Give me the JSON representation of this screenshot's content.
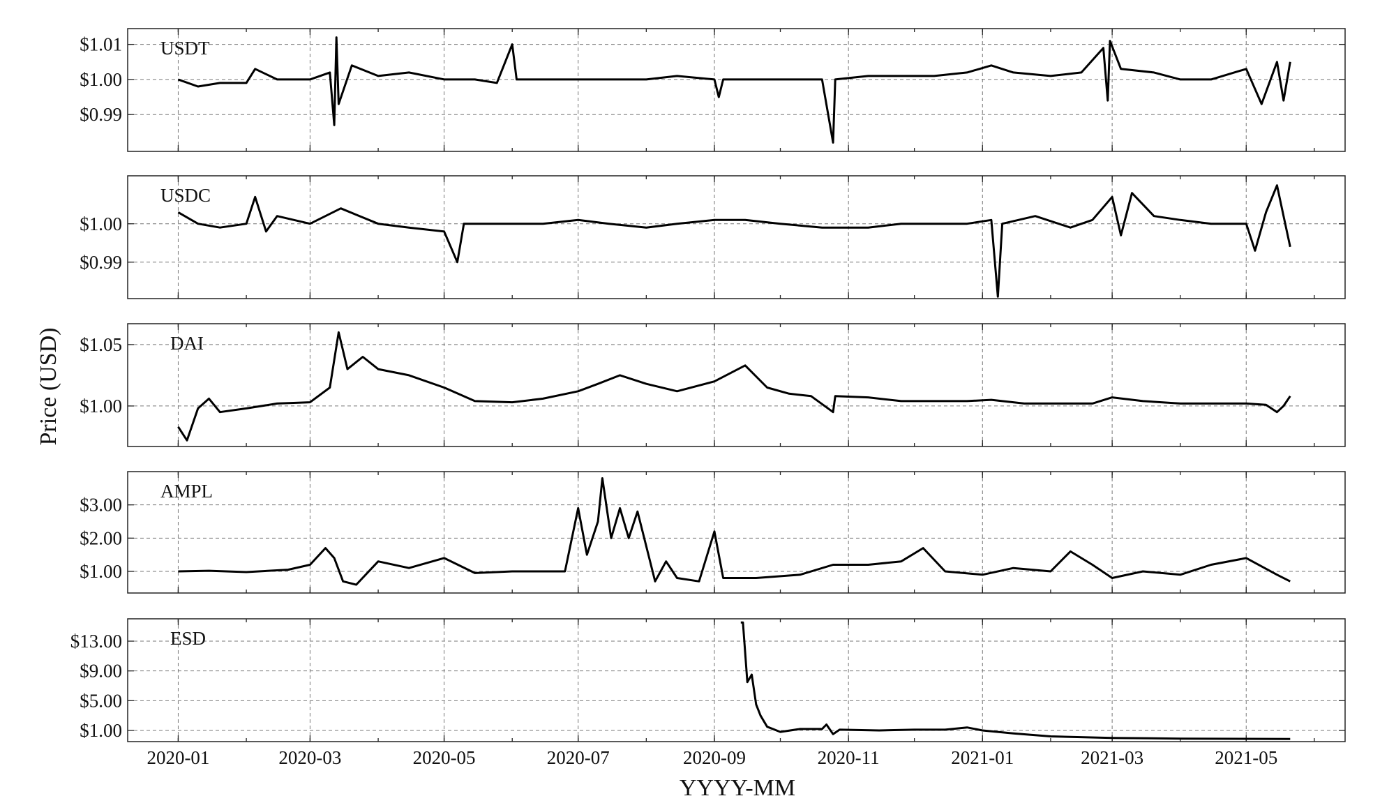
{
  "chart_data": {
    "type": "line",
    "layout": "stacked-panels",
    "xlabel": "YYYY-MM",
    "ylabel": "Price (USD)",
    "x_start": "2020-01-01",
    "x_end": "2021-05-21",
    "x_ticks": [
      "2020-01",
      "2020-03",
      "2020-05",
      "2020-07",
      "2020-09",
      "2020-11",
      "2021-01",
      "2021-03",
      "2021-05"
    ],
    "grid": true,
    "panels": [
      {
        "name": "USDT",
        "ylim": [
          0.9795,
          1.0145
        ],
        "yticks": [
          0.99,
          1.0,
          1.01
        ],
        "ytick_labels": [
          "$0.99",
          "$1.00",
          "$1.01"
        ],
        "series": [
          [
            "2020-01-01",
            1.0
          ],
          [
            "2020-01-10",
            0.998
          ],
          [
            "2020-01-20",
            0.999
          ],
          [
            "2020-02-01",
            0.999
          ],
          [
            "2020-02-05",
            1.003
          ],
          [
            "2020-02-15",
            1.0
          ],
          [
            "2020-03-01",
            1.0
          ],
          [
            "2020-03-10",
            1.002
          ],
          [
            "2020-03-12",
            0.987
          ],
          [
            "2020-03-13",
            1.012
          ],
          [
            "2020-03-14",
            0.993
          ],
          [
            "2020-03-20",
            1.004
          ],
          [
            "2020-04-01",
            1.001
          ],
          [
            "2020-04-15",
            1.002
          ],
          [
            "2020-05-01",
            1.0
          ],
          [
            "2020-05-15",
            1.0
          ],
          [
            "2020-05-25",
            0.999
          ],
          [
            "2020-06-01",
            1.01
          ],
          [
            "2020-06-03",
            1.0
          ],
          [
            "2020-06-15",
            1.0
          ],
          [
            "2020-07-01",
            1.0
          ],
          [
            "2020-07-15",
            1.0
          ],
          [
            "2020-08-01",
            1.0
          ],
          [
            "2020-08-15",
            1.001
          ],
          [
            "2020-09-01",
            1.0
          ],
          [
            "2020-09-03",
            0.995
          ],
          [
            "2020-09-05",
            1.0
          ],
          [
            "2020-09-20",
            1.0
          ],
          [
            "2020-10-01",
            1.0
          ],
          [
            "2020-10-20",
            1.0
          ],
          [
            "2020-10-25",
            0.982
          ],
          [
            "2020-10-26",
            1.0
          ],
          [
            "2020-11-10",
            1.001
          ],
          [
            "2020-11-25",
            1.001
          ],
          [
            "2020-12-10",
            1.001
          ],
          [
            "2020-12-25",
            1.002
          ],
          [
            "2021-01-05",
            1.004
          ],
          [
            "2021-01-15",
            1.002
          ],
          [
            "2021-02-01",
            1.001
          ],
          [
            "2021-02-15",
            1.002
          ],
          [
            "2021-02-25",
            1.009
          ],
          [
            "2021-02-27",
            0.994
          ],
          [
            "2021-02-28",
            1.011
          ],
          [
            "2021-03-05",
            1.003
          ],
          [
            "2021-03-20",
            1.002
          ],
          [
            "2021-04-01",
            1.0
          ],
          [
            "2021-04-15",
            1.0
          ],
          [
            "2021-05-01",
            1.003
          ],
          [
            "2021-05-08",
            0.993
          ],
          [
            "2021-05-15",
            1.005
          ],
          [
            "2021-05-18",
            0.994
          ],
          [
            "2021-05-21",
            1.005
          ]
        ]
      },
      {
        "name": "USDC",
        "ylim": [
          0.9805,
          1.0125
        ],
        "yticks": [
          0.99,
          1.0
        ],
        "ytick_labels": [
          "$0.99",
          "$1.00"
        ],
        "series": [
          [
            "2020-01-01",
            1.003
          ],
          [
            "2020-01-10",
            1.0
          ],
          [
            "2020-01-20",
            0.999
          ],
          [
            "2020-02-01",
            1.0
          ],
          [
            "2020-02-05",
            1.007
          ],
          [
            "2020-02-10",
            0.998
          ],
          [
            "2020-02-15",
            1.002
          ],
          [
            "2020-03-01",
            1.0
          ],
          [
            "2020-03-15",
            1.004
          ],
          [
            "2020-04-01",
            1.0
          ],
          [
            "2020-04-15",
            0.999
          ],
          [
            "2020-05-01",
            0.998
          ],
          [
            "2020-05-07",
            0.99
          ],
          [
            "2020-05-10",
            1.0
          ],
          [
            "2020-06-01",
            1.0
          ],
          [
            "2020-06-15",
            1.0
          ],
          [
            "2020-07-01",
            1.001
          ],
          [
            "2020-07-15",
            1.0
          ],
          [
            "2020-08-01",
            0.999
          ],
          [
            "2020-08-15",
            1.0
          ],
          [
            "2020-09-01",
            1.001
          ],
          [
            "2020-09-15",
            1.001
          ],
          [
            "2020-10-01",
            1.0
          ],
          [
            "2020-10-20",
            0.999
          ],
          [
            "2020-11-10",
            0.999
          ],
          [
            "2020-11-25",
            1.0
          ],
          [
            "2020-12-10",
            1.0
          ],
          [
            "2020-12-25",
            1.0
          ],
          [
            "2021-01-05",
            1.001
          ],
          [
            "2021-01-08",
            0.981
          ],
          [
            "2021-01-10",
            1.0
          ],
          [
            "2021-01-25",
            1.002
          ],
          [
            "2021-02-10",
            0.999
          ],
          [
            "2021-02-20",
            1.001
          ],
          [
            "2021-03-01",
            1.007
          ],
          [
            "2021-03-05",
            0.997
          ],
          [
            "2021-03-10",
            1.008
          ],
          [
            "2021-03-20",
            1.002
          ],
          [
            "2021-04-01",
            1.001
          ],
          [
            "2021-04-15",
            1.0
          ],
          [
            "2021-05-01",
            1.0
          ],
          [
            "2021-05-05",
            0.993
          ],
          [
            "2021-05-10",
            1.003
          ],
          [
            "2021-05-15",
            1.01
          ],
          [
            "2021-05-18",
            1.002
          ],
          [
            "2021-05-21",
            0.994
          ]
        ]
      },
      {
        "name": "DAI",
        "ylim": [
          0.967,
          1.067
        ],
        "yticks": [
          1.0,
          1.05
        ],
        "ytick_labels": [
          "$1.00",
          "$1.05"
        ],
        "series": [
          [
            "2020-01-01",
            0.983
          ],
          [
            "2020-01-05",
            0.972
          ],
          [
            "2020-01-10",
            0.998
          ],
          [
            "2020-01-15",
            1.006
          ],
          [
            "2020-01-20",
            0.995
          ],
          [
            "2020-02-01",
            0.998
          ],
          [
            "2020-02-15",
            1.002
          ],
          [
            "2020-03-01",
            1.003
          ],
          [
            "2020-03-10",
            1.015
          ],
          [
            "2020-03-14",
            1.06
          ],
          [
            "2020-03-18",
            1.03
          ],
          [
            "2020-03-25",
            1.04
          ],
          [
            "2020-04-01",
            1.03
          ],
          [
            "2020-04-15",
            1.025
          ],
          [
            "2020-05-01",
            1.015
          ],
          [
            "2020-05-15",
            1.004
          ],
          [
            "2020-06-01",
            1.003
          ],
          [
            "2020-06-15",
            1.006
          ],
          [
            "2020-07-01",
            1.012
          ],
          [
            "2020-07-10",
            1.018
          ],
          [
            "2020-07-20",
            1.025
          ],
          [
            "2020-08-01",
            1.018
          ],
          [
            "2020-08-15",
            1.012
          ],
          [
            "2020-09-01",
            1.02
          ],
          [
            "2020-09-15",
            1.033
          ],
          [
            "2020-09-25",
            1.015
          ],
          [
            "2020-10-05",
            1.01
          ],
          [
            "2020-10-15",
            1.008
          ],
          [
            "2020-10-25",
            0.995
          ],
          [
            "2020-10-26",
            1.008
          ],
          [
            "2020-11-10",
            1.007
          ],
          [
            "2020-11-25",
            1.004
          ],
          [
            "2020-12-10",
            1.004
          ],
          [
            "2020-12-25",
            1.004
          ],
          [
            "2021-01-05",
            1.005
          ],
          [
            "2021-01-20",
            1.002
          ],
          [
            "2021-02-05",
            1.002
          ],
          [
            "2021-02-20",
            1.002
          ],
          [
            "2021-03-01",
            1.007
          ],
          [
            "2021-03-15",
            1.004
          ],
          [
            "2021-04-01",
            1.002
          ],
          [
            "2021-04-15",
            1.002
          ],
          [
            "2021-05-01",
            1.002
          ],
          [
            "2021-05-10",
            1.001
          ],
          [
            "2021-05-15",
            0.995
          ],
          [
            "2021-05-18",
            1.0
          ],
          [
            "2021-05-21",
            1.008
          ]
        ]
      },
      {
        "name": "AMPL",
        "ylim": [
          0.35,
          4.0
        ],
        "yticks": [
          1.0,
          2.0,
          3.0
        ],
        "ytick_labels": [
          "$1.00",
          "$2.00",
          "$3.00"
        ],
        "series": [
          [
            "2020-01-01",
            1.0
          ],
          [
            "2020-01-15",
            1.02
          ],
          [
            "2020-02-01",
            0.98
          ],
          [
            "2020-02-20",
            1.05
          ],
          [
            "2020-03-01",
            1.2
          ],
          [
            "2020-03-08",
            1.7
          ],
          [
            "2020-03-12",
            1.4
          ],
          [
            "2020-03-16",
            0.7
          ],
          [
            "2020-03-22",
            0.6
          ],
          [
            "2020-04-01",
            1.3
          ],
          [
            "2020-04-15",
            1.1
          ],
          [
            "2020-05-01",
            1.4
          ],
          [
            "2020-05-15",
            0.95
          ],
          [
            "2020-06-01",
            1.0
          ],
          [
            "2020-06-15",
            1.0
          ],
          [
            "2020-06-25",
            1.0
          ],
          [
            "2020-07-01",
            2.9
          ],
          [
            "2020-07-05",
            1.5
          ],
          [
            "2020-07-10",
            2.5
          ],
          [
            "2020-07-12",
            3.8
          ],
          [
            "2020-07-16",
            2.0
          ],
          [
            "2020-07-20",
            2.9
          ],
          [
            "2020-07-24",
            2.0
          ],
          [
            "2020-07-28",
            2.8
          ],
          [
            "2020-08-05",
            0.7
          ],
          [
            "2020-08-10",
            1.3
          ],
          [
            "2020-08-15",
            0.8
          ],
          [
            "2020-08-25",
            0.7
          ],
          [
            "2020-09-01",
            2.2
          ],
          [
            "2020-09-05",
            0.8
          ],
          [
            "2020-09-20",
            0.8
          ],
          [
            "2020-10-10",
            0.9
          ],
          [
            "2020-10-25",
            1.2
          ],
          [
            "2020-11-10",
            1.2
          ],
          [
            "2020-11-25",
            1.3
          ],
          [
            "2020-12-05",
            1.7
          ],
          [
            "2020-12-15",
            1.0
          ],
          [
            "2021-01-01",
            0.9
          ],
          [
            "2021-01-15",
            1.1
          ],
          [
            "2021-02-01",
            1.0
          ],
          [
            "2021-02-10",
            1.6
          ],
          [
            "2021-02-20",
            1.2
          ],
          [
            "2021-03-01",
            0.8
          ],
          [
            "2021-03-15",
            1.0
          ],
          [
            "2021-04-01",
            0.9
          ],
          [
            "2021-04-15",
            1.2
          ],
          [
            "2021-05-01",
            1.4
          ],
          [
            "2021-05-15",
            0.9
          ],
          [
            "2021-05-21",
            0.7
          ]
        ]
      },
      {
        "name": "ESD",
        "ylim": [
          -0.5,
          16.0
        ],
        "yticks": [
          1.0,
          5.0,
          9.0,
          13.0
        ],
        "ytick_labels": [
          "$1.00",
          "$5.00",
          "$9.00",
          "$13.00"
        ],
        "series": [
          [
            "2020-09-13",
            15.5
          ],
          [
            "2020-09-14",
            15.5
          ],
          [
            "2020-09-16",
            7.5
          ],
          [
            "2020-09-18",
            8.5
          ],
          [
            "2020-09-20",
            4.5
          ],
          [
            "2020-09-22",
            3.0
          ],
          [
            "2020-09-25",
            1.5
          ],
          [
            "2020-10-01",
            0.8
          ],
          [
            "2020-10-10",
            1.2
          ],
          [
            "2020-10-20",
            1.2
          ],
          [
            "2020-10-22",
            1.8
          ],
          [
            "2020-10-25",
            0.5
          ],
          [
            "2020-10-28",
            1.1
          ],
          [
            "2020-11-15",
            1.0
          ],
          [
            "2020-12-01",
            1.1
          ],
          [
            "2020-12-15",
            1.1
          ],
          [
            "2020-12-25",
            1.4
          ],
          [
            "2021-01-01",
            1.0
          ],
          [
            "2021-01-15",
            0.6
          ],
          [
            "2021-02-01",
            0.2
          ],
          [
            "2021-03-01",
            0.0
          ],
          [
            "2021-04-01",
            -0.1
          ],
          [
            "2021-05-21",
            -0.15
          ]
        ]
      }
    ]
  }
}
